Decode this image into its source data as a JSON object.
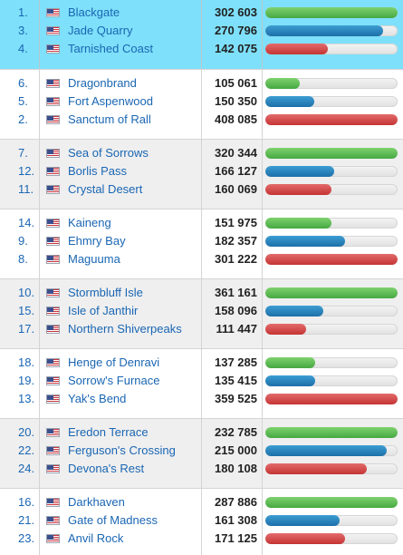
{
  "groups": [
    {
      "rows": [
        {
          "rank": "1.",
          "name": "Blackgate",
          "score": "302 603",
          "bar_color": "green",
          "bar_fill": 1.0
        },
        {
          "rank": "3.",
          "name": "Jade Quarry",
          "score": "270 796",
          "bar_color": "blue",
          "bar_fill": 0.89
        },
        {
          "rank": "4.",
          "name": "Tarnished Coast",
          "score": "142 075",
          "bar_color": "red",
          "bar_fill": 0.47
        }
      ]
    },
    {
      "rows": [
        {
          "rank": "6.",
          "name": "Dragonbrand",
          "score": "105 061",
          "bar_color": "green",
          "bar_fill": 0.26
        },
        {
          "rank": "5.",
          "name": "Fort Aspenwood",
          "score": "150 350",
          "bar_color": "blue",
          "bar_fill": 0.37
        },
        {
          "rank": "2.",
          "name": "Sanctum of Rall",
          "score": "408 085",
          "bar_color": "red",
          "bar_fill": 1.0
        }
      ]
    },
    {
      "rows": [
        {
          "rank": "7.",
          "name": "Sea of Sorrows",
          "score": "320 344",
          "bar_color": "green",
          "bar_fill": 1.0
        },
        {
          "rank": "12.",
          "name": "Borlis Pass",
          "score": "166 127",
          "bar_color": "blue",
          "bar_fill": 0.52
        },
        {
          "rank": "11.",
          "name": "Crystal Desert",
          "score": "160 069",
          "bar_color": "red",
          "bar_fill": 0.5
        }
      ]
    },
    {
      "rows": [
        {
          "rank": "14.",
          "name": "Kaineng",
          "score": "151 975",
          "bar_color": "green",
          "bar_fill": 0.5
        },
        {
          "rank": "9.",
          "name": "Ehmry Bay",
          "score": "182 357",
          "bar_color": "blue",
          "bar_fill": 0.605
        },
        {
          "rank": "8.",
          "name": "Maguuma",
          "score": "301 222",
          "bar_color": "red",
          "bar_fill": 1.0
        }
      ]
    },
    {
      "rows": [
        {
          "rank": "10.",
          "name": "Stormbluff Isle",
          "score": "361 161",
          "bar_color": "green",
          "bar_fill": 1.0
        },
        {
          "rank": "15.",
          "name": "Isle of Janthir",
          "score": "158 096",
          "bar_color": "blue",
          "bar_fill": 0.44
        },
        {
          "rank": "17.",
          "name": "Northern Shiverpeaks",
          "score": "111 447",
          "bar_color": "red",
          "bar_fill": 0.31
        }
      ]
    },
    {
      "rows": [
        {
          "rank": "18.",
          "name": "Henge of Denravi",
          "score": "137 285",
          "bar_color": "green",
          "bar_fill": 0.38
        },
        {
          "rank": "19.",
          "name": "Sorrow's Furnace",
          "score": "135 415",
          "bar_color": "blue",
          "bar_fill": 0.375
        },
        {
          "rank": "13.",
          "name": "Yak's Bend",
          "score": "359 525",
          "bar_color": "red",
          "bar_fill": 1.0
        }
      ]
    },
    {
      "rows": [
        {
          "rank": "20.",
          "name": "Eredon Terrace",
          "score": "232 785",
          "bar_color": "green",
          "bar_fill": 1.0
        },
        {
          "rank": "22.",
          "name": "Ferguson's Crossing",
          "score": "215 000",
          "bar_color": "blue",
          "bar_fill": 0.92
        },
        {
          "rank": "24.",
          "name": "Devona's Rest",
          "score": "180 108",
          "bar_color": "red",
          "bar_fill": 0.77
        }
      ]
    },
    {
      "rows": [
        {
          "rank": "16.",
          "name": "Darkhaven",
          "score": "287 886",
          "bar_color": "green",
          "bar_fill": 1.0
        },
        {
          "rank": "21.",
          "name": "Gate of Madness",
          "score": "161 308",
          "bar_color": "blue",
          "bar_fill": 0.56
        },
        {
          "rank": "23.",
          "name": "Anvil Rock",
          "score": "171 125",
          "bar_color": "red",
          "bar_fill": 0.6
        }
      ]
    }
  ]
}
